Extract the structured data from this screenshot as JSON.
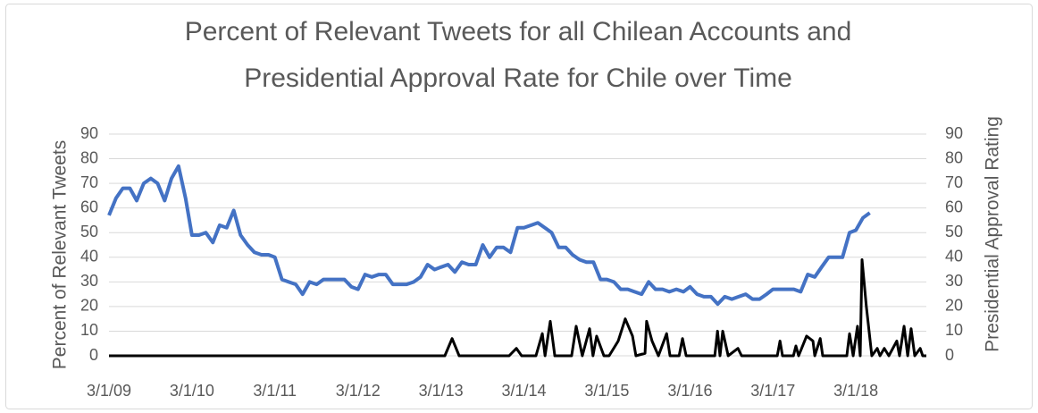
{
  "chart_data": {
    "type": "line",
    "title": "Percent of Relevant Tweets for all Chilean Accounts and Presidential Approval Rate for Chile over Time",
    "y_label": "Percent of Relevant Tweets",
    "y2_label": "Presidential Approval Rating",
    "xlim": [
      "3/1/09",
      "1/5/19"
    ],
    "xticks": [
      "3/1/09",
      "3/1/10",
      "3/1/11",
      "3/1/12",
      "3/1/13",
      "3/1/14",
      "3/1/15",
      "3/1/16",
      "3/1/17",
      "3/1/18"
    ],
    "ylim": [
      0,
      90
    ],
    "yticks": [
      0,
      10,
      20,
      30,
      40,
      50,
      60,
      70,
      80,
      90
    ],
    "y2lim": [
      0,
      90
    ],
    "y2ticks": [
      0,
      10,
      20,
      30,
      40,
      50,
      60,
      70,
      80,
      90
    ],
    "grid": true,
    "series": [
      {
        "name": "Presidential Approval Rating",
        "color": "#4472c4",
        "axis": "y2",
        "x": [
          "3/1/09",
          "4/1/09",
          "5/1/09",
          "6/1/09",
          "7/1/09",
          "8/1/09",
          "9/1/09",
          "10/1/09",
          "11/1/09",
          "12/1/09",
          "1/1/10",
          "2/1/10",
          "3/1/10",
          "4/1/10",
          "5/1/10",
          "6/1/10",
          "7/1/10",
          "8/1/10",
          "9/1/10",
          "10/1/10",
          "11/1/10",
          "12/1/10",
          "1/1/11",
          "2/1/11",
          "3/1/11",
          "4/1/11",
          "5/1/11",
          "6/1/11",
          "7/1/11",
          "8/1/11",
          "9/1/11",
          "10/1/11",
          "11/1/11",
          "12/1/11",
          "1/1/12",
          "2/1/12",
          "3/1/12",
          "4/1/12",
          "5/1/12",
          "6/1/12",
          "7/1/12",
          "8/1/12",
          "9/1/12",
          "10/1/12",
          "11/1/12",
          "12/1/12",
          "1/1/13",
          "2/1/13",
          "3/1/13",
          "4/1/13",
          "5/1/13",
          "6/1/13",
          "7/1/13",
          "8/1/13",
          "9/1/13",
          "10/1/13",
          "11/1/13",
          "12/1/13",
          "1/1/14",
          "2/1/14",
          "3/1/14",
          "4/1/14",
          "5/1/14",
          "6/1/14",
          "7/1/14",
          "8/1/14",
          "9/1/14",
          "10/1/14",
          "11/1/14",
          "12/1/14",
          "1/1/15",
          "2/1/15",
          "3/1/15",
          "4/1/15",
          "5/1/15",
          "6/1/15",
          "7/1/15",
          "8/1/15",
          "9/1/15",
          "10/1/15",
          "11/1/15",
          "12/1/15",
          "1/1/16",
          "2/1/16",
          "3/1/16",
          "4/1/16",
          "5/1/16",
          "6/1/16",
          "7/1/16",
          "8/1/16",
          "9/1/16",
          "10/1/16",
          "11/1/16",
          "12/1/16",
          "1/1/17",
          "2/1/17",
          "3/1/17",
          "4/1/17",
          "5/1/17",
          "6/1/17",
          "7/1/17",
          "8/1/17",
          "9/1/17",
          "10/1/17",
          "11/1/17",
          "12/1/17",
          "1/1/18",
          "2/1/18",
          "3/1/18",
          "4/1/18",
          "5/1/18"
        ],
        "values": [
          57,
          64,
          68,
          68,
          63,
          70,
          72,
          70,
          63,
          72,
          77,
          64,
          49,
          49,
          50,
          46,
          53,
          52,
          59,
          49,
          45,
          42,
          41,
          41,
          40,
          31,
          30,
          29,
          25,
          30,
          29,
          31,
          31,
          31,
          31,
          28,
          27,
          33,
          32,
          33,
          33,
          29,
          29,
          29,
          30,
          32,
          37,
          35,
          36,
          37,
          34,
          38,
          37,
          37,
          45,
          40,
          44,
          44,
          42,
          52,
          52,
          53,
          54,
          52,
          50,
          44,
          44,
          41,
          39,
          38,
          38,
          31,
          31,
          30,
          27,
          27,
          26,
          25,
          30,
          27,
          27,
          26,
          27,
          26,
          28,
          25,
          24,
          24,
          21,
          24,
          23,
          24,
          25,
          23,
          23,
          25,
          27,
          27,
          27,
          27,
          26,
          33,
          32,
          36,
          40,
          40,
          40,
          50,
          51,
          56,
          58
        ]
      },
      {
        "name": "Percent of Relevant Tweets",
        "color": "#000000",
        "axis": "y",
        "x": [
          "3/1/09",
          "3/18/13",
          "4/19/13",
          "5/20/13",
          "12/26/13",
          "1/27/14",
          "2/19/14",
          "4/23/14",
          "5/21/14",
          "6/2/14",
          "6/25/14",
          "7/15/14",
          "9/27/14",
          "10/17/14",
          "11/13/14",
          "12/15/14",
          "12/30/14",
          "1/15/15",
          "2/16/15",
          "3/11/15",
          "4/20/15",
          "5/21/15",
          "6/22/15",
          "7/7/15",
          "8/16/15",
          "8/23/15",
          "9/16/15",
          "10/14/15",
          "11/19/15",
          "12/4/15",
          "1/13/16",
          "1/28/16",
          "2/13/16",
          "6/18/16",
          "6/30/16",
          "7/11/16",
          "7/23/16",
          "8/16/16",
          "9/28/16",
          "10/14/16",
          "3/20/17",
          "4/1/17",
          "4/12/17",
          "5/30/17",
          "6/10/17",
          "6/22/17",
          "7/27/17",
          "8/24/17",
          "9/1/17",
          "9/25/17",
          "10/6/17",
          "1/20/18",
          "2/1/18",
          "2/17/18",
          "3/8/18",
          "3/20/18",
          "3/28/18",
          "4/16/18",
          "5/10/18",
          "6/3/18",
          "6/15/18",
          "7/4/18",
          "7/24/18",
          "8/28/18",
          "9/9/18",
          "9/29/18",
          "10/15/18",
          "10/30/18",
          "11/15/18",
          "12/9/18",
          "12/20/18",
          "1/5/19"
        ],
        "values": [
          0,
          0,
          7,
          0,
          0,
          3,
          0,
          0,
          9,
          0,
          14,
          0,
          0,
          12,
          0,
          11,
          0,
          8,
          0,
          0,
          6,
          15,
          8,
          0,
          1,
          14,
          6,
          0,
          9,
          0,
          0,
          7,
          0,
          0,
          10,
          0,
          10,
          0,
          3,
          0,
          0,
          6,
          0,
          0,
          4,
          0,
          8,
          6,
          0,
          7,
          0,
          0,
          9,
          0,
          12,
          0,
          39,
          20,
          0,
          3,
          0,
          3,
          0,
          6,
          0,
          12,
          0,
          11,
          0,
          3,
          0,
          0
        ]
      }
    ]
  }
}
